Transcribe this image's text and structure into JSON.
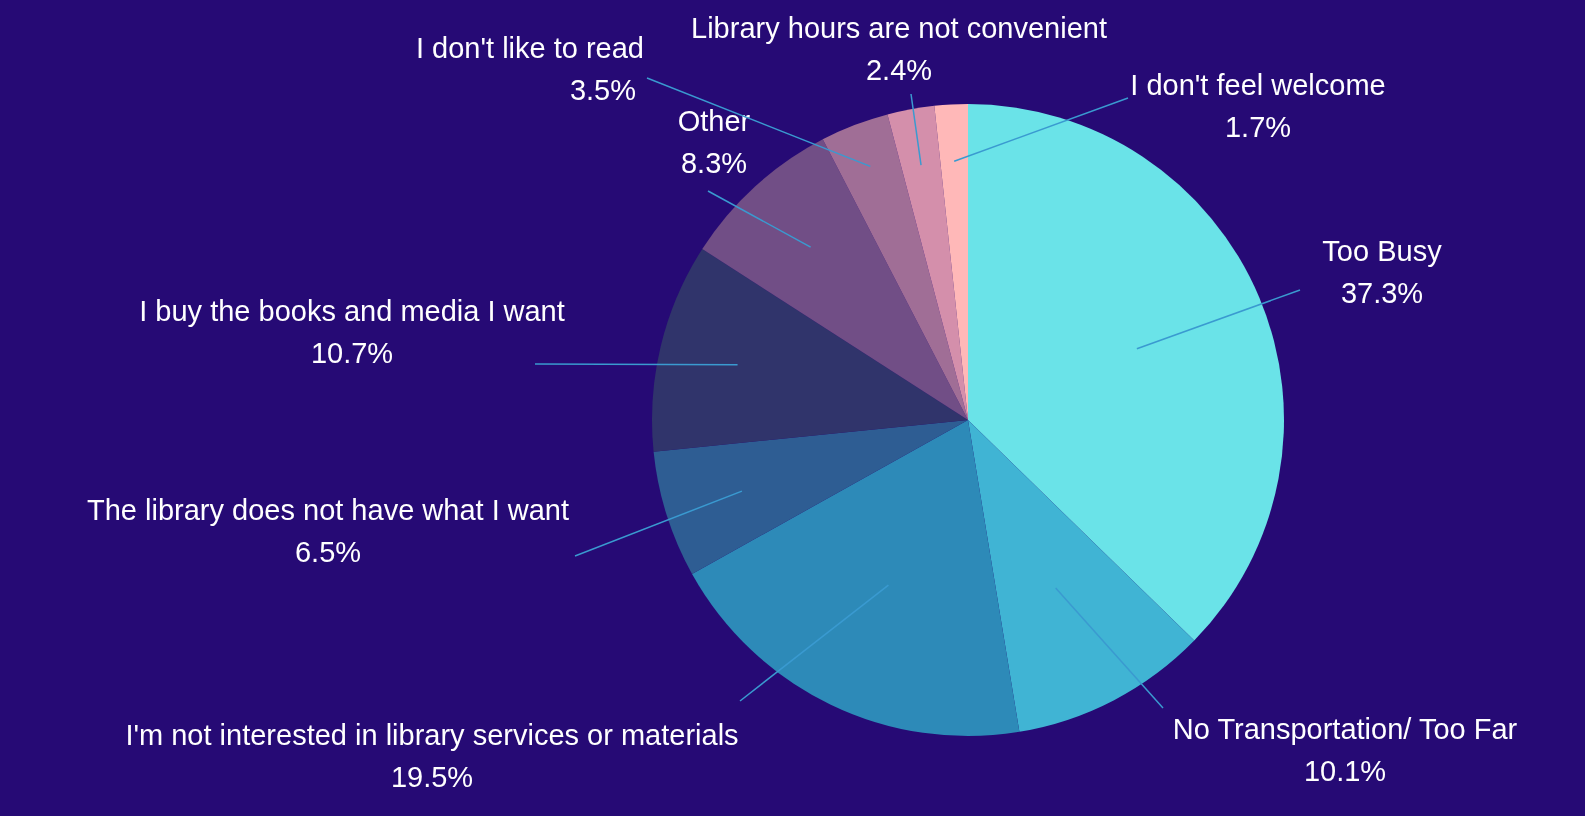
{
  "chart_data": {
    "type": "pie",
    "categories": [
      "Too Busy",
      "No Transportation/ Too Far",
      "I'm not interested in library services or materials",
      "The library does not have what I want",
      "I buy the books and media I want",
      "Other",
      "I don't like to read",
      "Library hours are not convenient",
      "I don't feel welcome"
    ],
    "values": [
      37.3,
      10.1,
      19.5,
      6.5,
      10.7,
      8.3,
      3.5,
      2.4,
      1.7
    ],
    "value_labels": [
      "37.3%",
      "10.1%",
      "19.5%",
      "6.5%",
      "10.7%",
      "8.3%",
      "3.5%",
      "2.4%",
      "1.7%"
    ],
    "colors": [
      "#6ae3e8",
      "#40b4d4",
      "#2d8ab8",
      "#2e5d93",
      "#30346b",
      "#714e86",
      "#a06e96",
      "#d48fab",
      "#ffb8b8"
    ],
    "legend": false
  }
}
